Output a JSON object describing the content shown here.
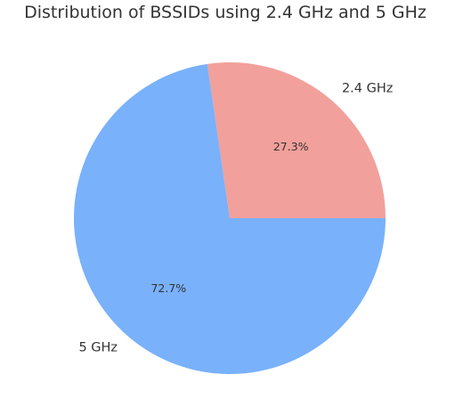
{
  "chart_data": {
    "type": "pie",
    "title": "Distribution of BSSIDs using 2.4 GHz and 5 GHz",
    "labels": [
      "2.4 GHz",
      "5 GHz"
    ],
    "values": [
      27.3,
      72.7
    ],
    "percent_labels": [
      "27.3%",
      "72.7%"
    ],
    "colors": [
      "#f2a09b",
      "#79b1fb"
    ],
    "start_angle_deg": 0,
    "direction": "counterclockwise",
    "legend": "none"
  }
}
